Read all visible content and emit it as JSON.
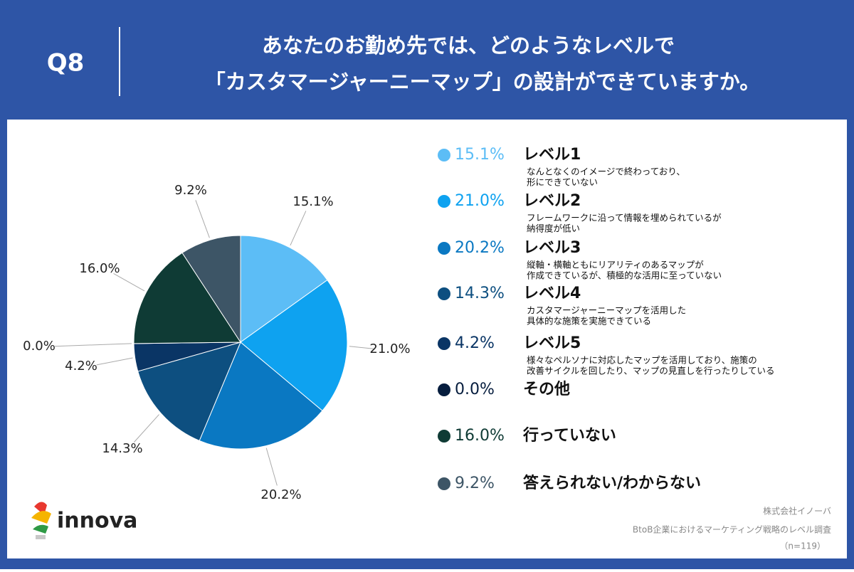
{
  "header": {
    "question": "Q8",
    "title": [
      "あなたのお勤め先では、どのようなレベルで",
      "「カスタマージャーニーマップ」の設計ができていますか。"
    ]
  },
  "chart_data": {
    "type": "pie",
    "categories": [
      "レベル1",
      "レベル2",
      "レベル3",
      "レベル4",
      "レベル5",
      "その他",
      "行っていない",
      "答えられない/わからない"
    ],
    "descriptions": [
      [
        "なんとなくのイメージで終わっており、",
        "形にできていない"
      ],
      [
        "フレームワークに沿って情報を埋められているが",
        "納得度が低い"
      ],
      [
        "縦軸・横軸ともにリアリティのあるマップが",
        "作成できているが、積極的な活用に至っていない"
      ],
      [
        "カスタマージャーニーマップを活用した",
        "具体的な施策を実施できている"
      ],
      [
        "様々なペルソナに対応したマップを活用しており、施策の",
        "改善サイクルを回したり、マップの見直しを行ったりしている"
      ]
    ],
    "values": [
      15.1,
      21.0,
      20.2,
      14.3,
      4.2,
      0.0,
      16.0,
      9.2
    ],
    "value_labels": [
      "15.1%",
      "21.0%",
      "20.2%",
      "14.3%",
      "4.2%",
      "0.0%",
      "16.0%",
      "9.2%"
    ],
    "colors": [
      "#5cbdf6",
      "#0ea2f0",
      "#0a78c2",
      "#0d4f80",
      "#0a3565",
      "#061d3e",
      "#0f3b35",
      "#3d5566"
    ]
  },
  "footer": {
    "company": "株式会社イノーバ",
    "survey": "BtoB企業におけるマーケティング戦略のレベル調査",
    "sample": "（n=119）"
  },
  "logo": "innova"
}
